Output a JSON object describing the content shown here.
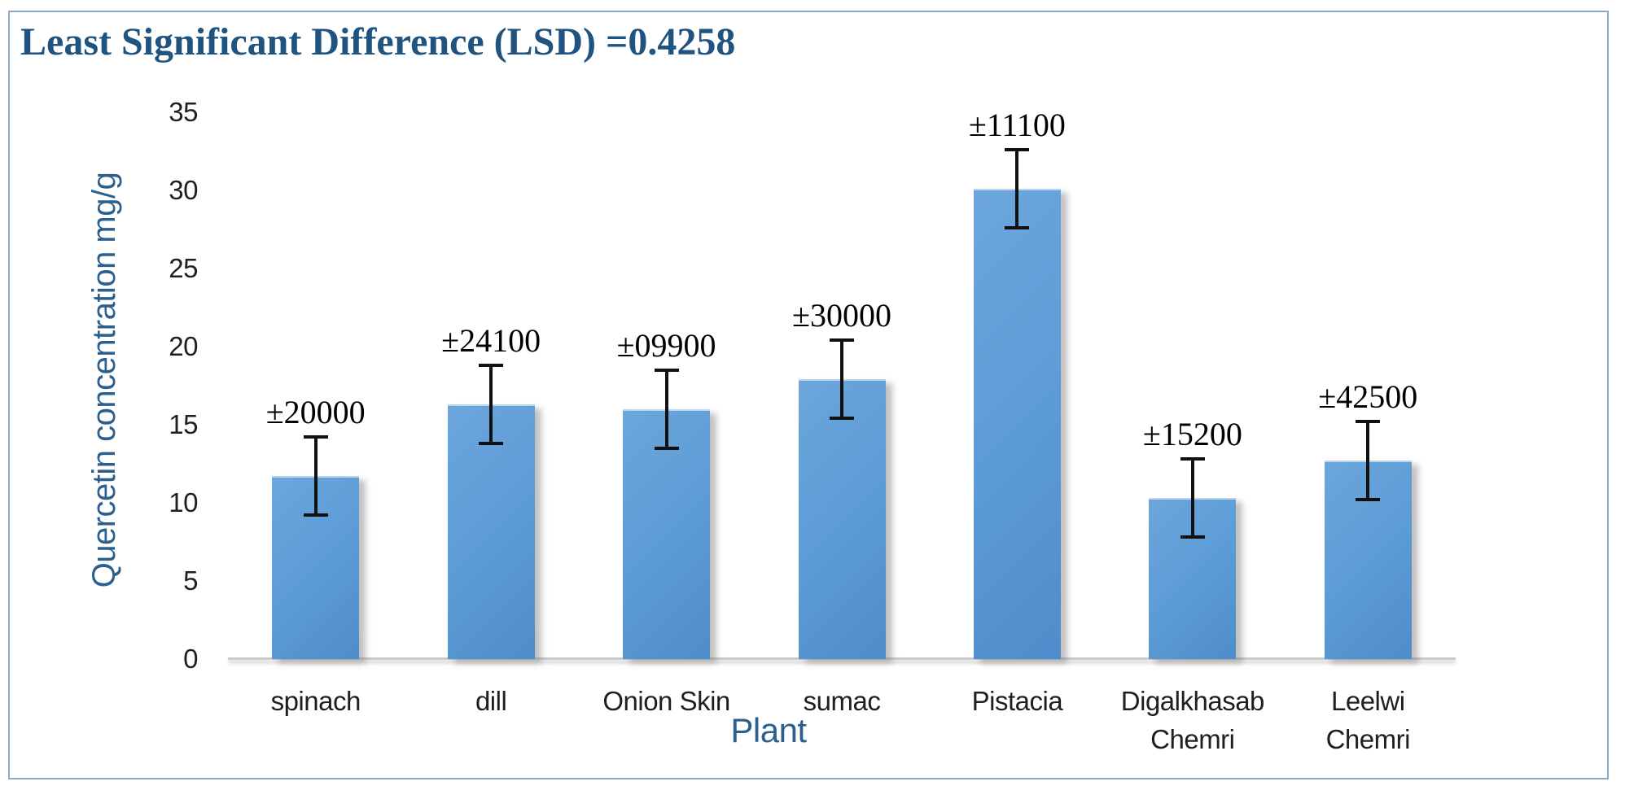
{
  "title": {
    "text": "Least Significant Difference (LSD) =0.4258"
  },
  "colors": {
    "title": "#1F5380",
    "axis_title": "#2B5F8E",
    "tick_label": "#1F1F1F",
    "bar_fill": "#5B9BD5",
    "bar_gradient_light": "#6CA6DD",
    "bar_gradient_dark": "#4F8CCB",
    "frame_border": "#8EA9C6",
    "axis_line": "#C9CBCE",
    "error_bar": "#111111"
  },
  "chart_data": {
    "type": "bar",
    "title": "Least Significant Difference (LSD) =0.4258",
    "xlabel": "Plant",
    "ylabel": "Quercetin concentration mg/g",
    "categories": [
      "spinach",
      "dill",
      "Onion Skin",
      "sumac",
      "Pistacia",
      "Digalkhasab Chemri",
      "Leelwi Chemri"
    ],
    "values": [
      11.7,
      16.3,
      16.0,
      17.9,
      30.1,
      10.3,
      12.7
    ],
    "error_bar_half_range": [
      2.5,
      2.5,
      2.5,
      2.5,
      2.5,
      2.5,
      2.5
    ],
    "error_annotations": [
      "±20000",
      "±24100",
      "±09900",
      "±30000",
      "±11100",
      "±15200",
      "±42500"
    ],
    "ylim": [
      0,
      35
    ],
    "yticks": [
      0,
      5,
      10,
      15,
      20,
      25,
      30,
      35
    ],
    "grid": false,
    "legend": "none",
    "bar_count": 7
  }
}
